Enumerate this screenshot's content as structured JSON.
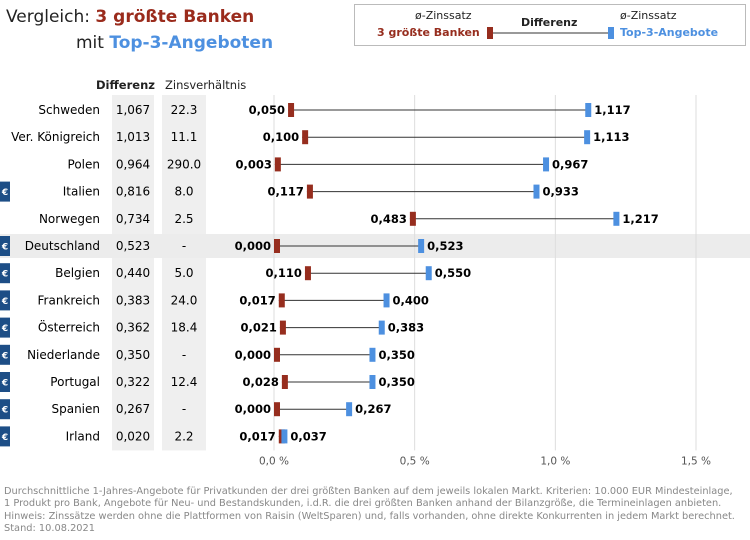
{
  "title": {
    "line1_prefix": "Vergleich: ",
    "line1_highlight": "3 größte Banken",
    "line2_prefix": "mit ",
    "line2_highlight": "Top-3-Angeboten"
  },
  "legend": {
    "left_header": "ø-Zinssatz",
    "left_label": "3 größte Banken",
    "middle_label": "Differenz",
    "right_header": "ø-Zinssatz",
    "right_label": "Top-3-Angebote"
  },
  "columns": {
    "diff": "Differenz",
    "ratio": "Zinsverhältnis"
  },
  "colors": {
    "big_banks": "#962d1e",
    "top3": "#4d90e0",
    "euro_badge": "#1d4e86",
    "highlight_row": "#ececec",
    "column_bg": "#efefef"
  },
  "chart_data": {
    "type": "dumbbell",
    "x_range": [
      0,
      1.5
    ],
    "x_ticks": [
      "0,0 %",
      "0,5 %",
      "1,0 %",
      "1,5 %"
    ],
    "x_tick_values": [
      0,
      0.5,
      1.0,
      1.5
    ],
    "series": [
      {
        "name": "3 größte Banken",
        "key": "low"
      },
      {
        "name": "Top-3-Angebote",
        "key": "high"
      }
    ],
    "rows": [
      {
        "country": "Schweden",
        "euro": false,
        "diff": "1,067",
        "ratio": "22.3",
        "low": 0.05,
        "high": 1.117,
        "low_label": "0,050",
        "high_label": "1,117",
        "highlight": false
      },
      {
        "country": "Ver. Königreich",
        "euro": false,
        "diff": "1,013",
        "ratio": "11.1",
        "low": 0.1,
        "high": 1.113,
        "low_label": "0,100",
        "high_label": "1,113",
        "highlight": false
      },
      {
        "country": "Polen",
        "euro": false,
        "diff": "0,964",
        "ratio": "290.0",
        "low": 0.003,
        "high": 0.967,
        "low_label": "0,003",
        "high_label": "0,967",
        "highlight": false
      },
      {
        "country": "Italien",
        "euro": true,
        "diff": "0,816",
        "ratio": "8.0",
        "low": 0.117,
        "high": 0.933,
        "low_label": "0,117",
        "high_label": "0,933",
        "highlight": false
      },
      {
        "country": "Norwegen",
        "euro": false,
        "diff": "0,734",
        "ratio": "2.5",
        "low": 0.483,
        "high": 1.217,
        "low_label": "0,483",
        "high_label": "1,217",
        "highlight": false
      },
      {
        "country": "Deutschland",
        "euro": true,
        "diff": "0,523",
        "ratio": "-",
        "low": 0.0,
        "high": 0.523,
        "low_label": "0,000",
        "high_label": "0,523",
        "highlight": true
      },
      {
        "country": "Belgien",
        "euro": true,
        "diff": "0,440",
        "ratio": "5.0",
        "low": 0.11,
        "high": 0.55,
        "low_label": "0,110",
        "high_label": "0,550",
        "highlight": false
      },
      {
        "country": "Frankreich",
        "euro": true,
        "diff": "0,383",
        "ratio": "24.0",
        "low": 0.017,
        "high": 0.4,
        "low_label": "0,017",
        "high_label": "0,400",
        "highlight": false
      },
      {
        "country": "Österreich",
        "euro": true,
        "diff": "0,362",
        "ratio": "18.4",
        "low": 0.021,
        "high": 0.383,
        "low_label": "0,021",
        "high_label": "0,383",
        "highlight": false
      },
      {
        "country": "Niederlande",
        "euro": true,
        "diff": "0,350",
        "ratio": "-",
        "low": 0.0,
        "high": 0.35,
        "low_label": "0,000",
        "high_label": "0,350",
        "highlight": false
      },
      {
        "country": "Portugal",
        "euro": true,
        "diff": "0,322",
        "ratio": "12.4",
        "low": 0.028,
        "high": 0.35,
        "low_label": "0,028",
        "high_label": "0,350",
        "highlight": false
      },
      {
        "country": "Spanien",
        "euro": true,
        "diff": "0,267",
        "ratio": "-",
        "low": 0.0,
        "high": 0.267,
        "low_label": "0,000",
        "high_label": "0,267",
        "highlight": false
      },
      {
        "country": "Irland",
        "euro": true,
        "diff": "0,020",
        "ratio": "2.2",
        "low": 0.017,
        "high": 0.037,
        "low_label": "0,017",
        "high_label": "0,037",
        "highlight": false
      }
    ]
  },
  "footnote": [
    "Durchschnittliche 1-Jahres-Angebote für Privatkunden der drei größten Banken auf dem jeweils lokalen Markt. Kriterien: 10.000 EUR Mindesteinlage,",
    "1 Produkt pro Bank, Angebote für Neu- und Bestandskunden, i.d.R. die drei größten Banken anhand der Bilanzgröße, die Termineinlagen anbieten.",
    "Hinweis: Zinssätze werden ohne die Plattformen von Raisin (WeltSparen) und, falls vorhanden, ohne direkte Konkurrenten in jedem Markt berechnet.",
    "Stand: 10.08.2021"
  ]
}
